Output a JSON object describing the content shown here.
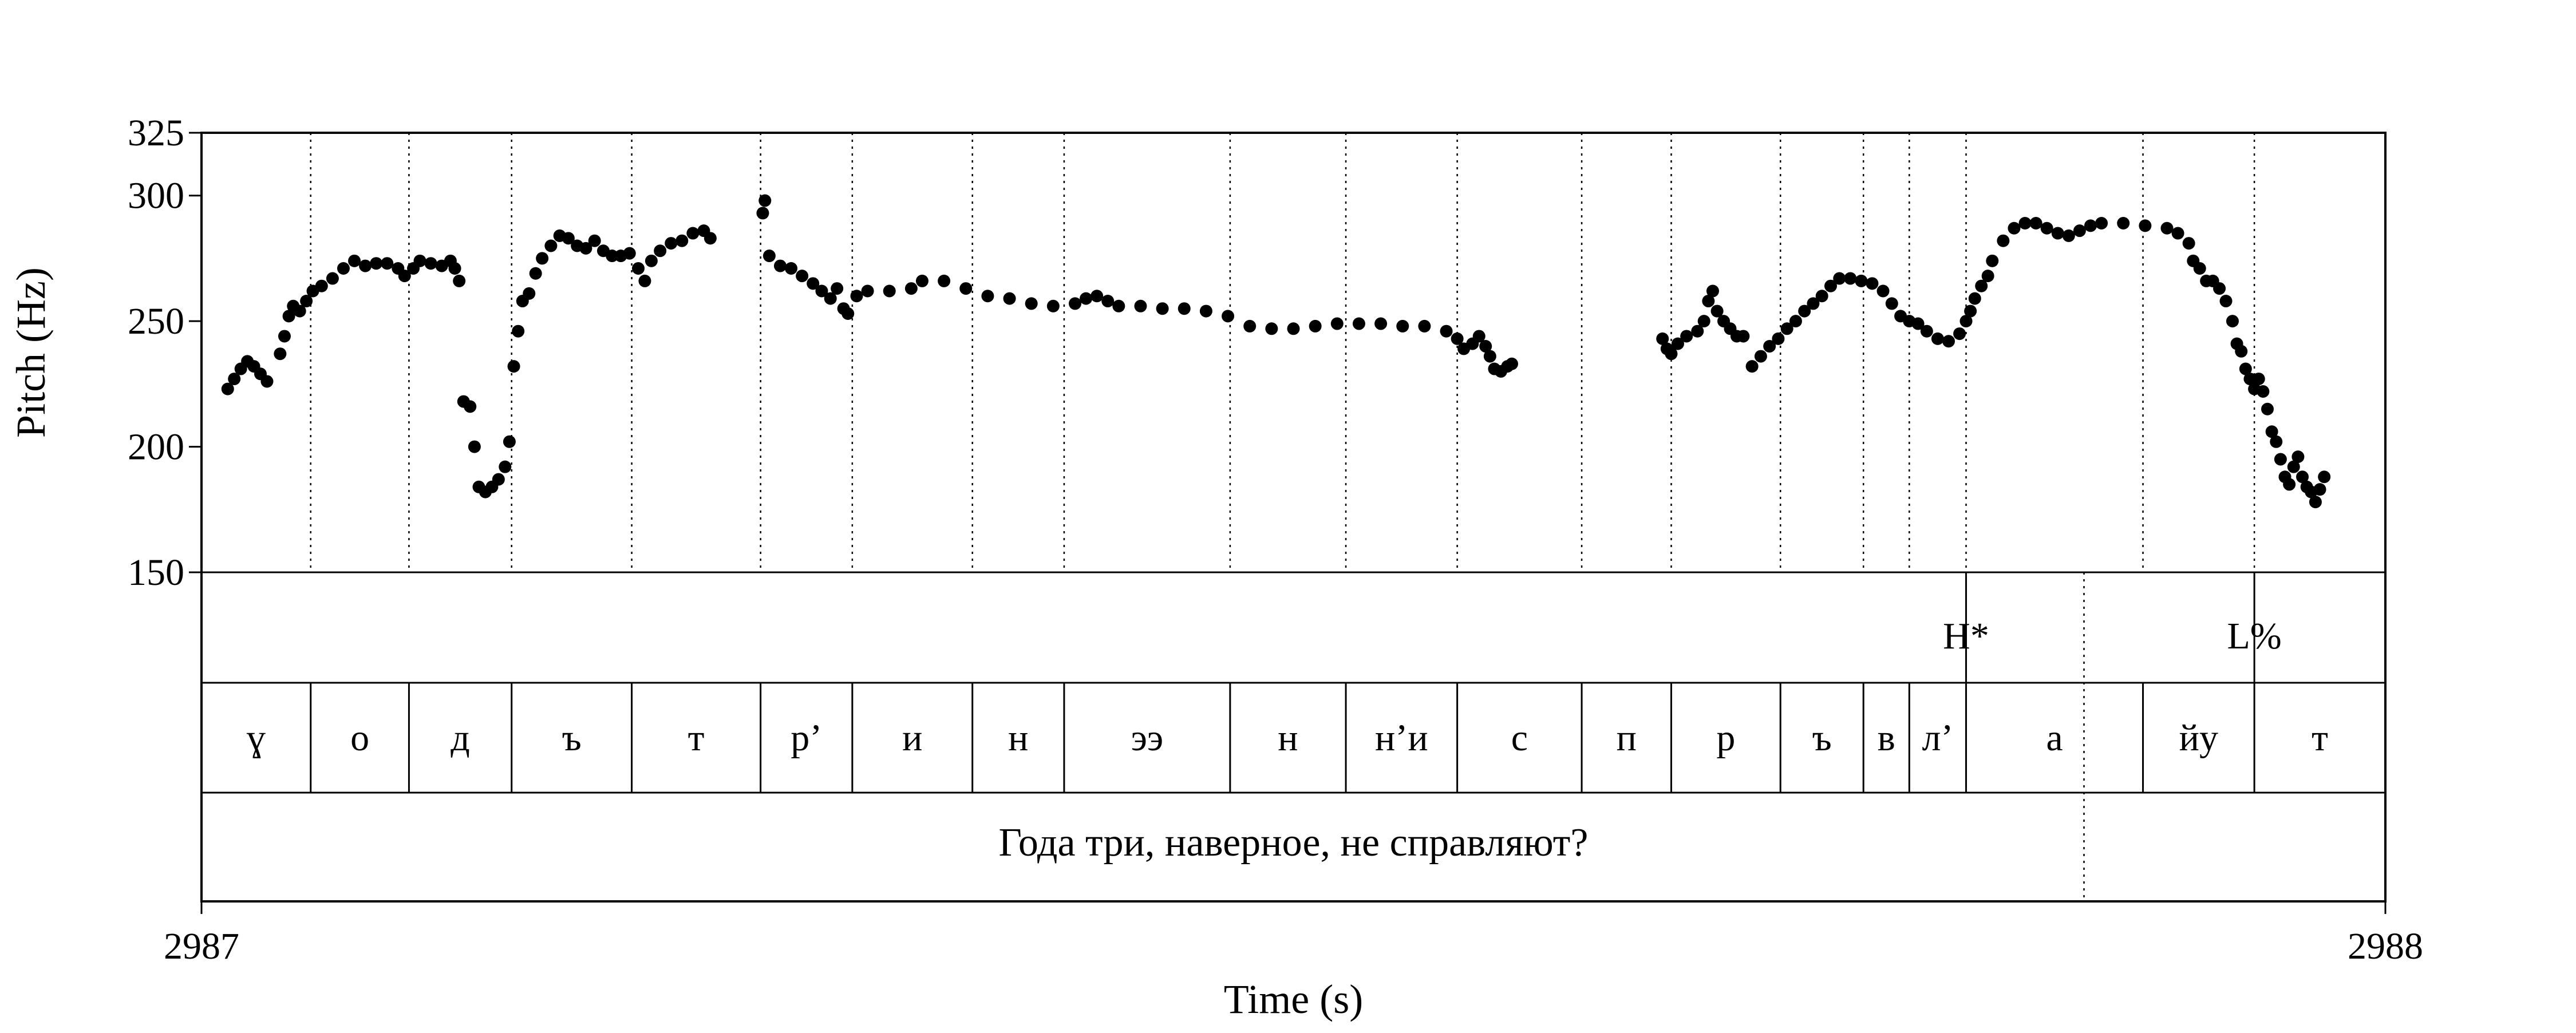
{
  "chart_data": {
    "type": "scatter",
    "xlabel": "Time (s)",
    "ylabel": "Pitch (Hz)",
    "xlim": [
      2987,
      2988
    ],
    "ylim": [
      150,
      325
    ],
    "x_ticks": [
      "2987",
      "2988"
    ],
    "y_ticks": [
      150,
      200,
      250,
      300,
      325
    ],
    "grid": "dotted vertical lines at segment boundaries",
    "series": [
      {
        "marker": "filled circle",
        "color": "#000000",
        "points": [
          [
            0.012,
            223
          ],
          [
            0.015,
            227
          ],
          [
            0.018,
            231
          ],
          [
            0.021,
            234
          ],
          [
            0.024,
            232
          ],
          [
            0.027,
            229
          ],
          [
            0.03,
            226
          ],
          [
            0.036,
            237
          ],
          [
            0.038,
            244
          ],
          [
            0.04,
            252
          ],
          [
            0.042,
            256
          ],
          [
            0.045,
            254
          ],
          [
            0.048,
            258
          ],
          [
            0.051,
            262
          ],
          [
            0.055,
            264
          ],
          [
            0.06,
            267
          ],
          [
            0.065,
            271
          ],
          [
            0.07,
            274
          ],
          [
            0.075,
            272
          ],
          [
            0.08,
            273
          ],
          [
            0.085,
            273
          ],
          [
            0.09,
            271
          ],
          [
            0.093,
            268
          ],
          [
            0.097,
            271
          ],
          [
            0.1,
            274
          ],
          [
            0.105,
            273
          ],
          [
            0.11,
            272
          ],
          [
            0.114,
            274
          ],
          [
            0.116,
            271
          ],
          [
            0.118,
            266
          ],
          [
            0.12,
            218
          ],
          [
            0.123,
            216
          ],
          [
            0.125,
            200
          ],
          [
            0.127,
            184
          ],
          [
            0.13,
            182
          ],
          [
            0.133,
            184
          ],
          [
            0.136,
            187
          ],
          [
            0.139,
            192
          ],
          [
            0.141,
            202
          ],
          [
            0.143,
            232
          ],
          [
            0.145,
            246
          ],
          [
            0.147,
            258
          ],
          [
            0.15,
            261
          ],
          [
            0.153,
            269
          ],
          [
            0.156,
            275
          ],
          [
            0.16,
            280
          ],
          [
            0.164,
            284
          ],
          [
            0.168,
            283
          ],
          [
            0.172,
            280
          ],
          [
            0.176,
            279
          ],
          [
            0.18,
            282
          ],
          [
            0.184,
            278
          ],
          [
            0.188,
            276
          ],
          [
            0.192,
            276
          ],
          [
            0.196,
            277
          ],
          [
            0.2,
            271
          ],
          [
            0.203,
            266
          ],
          [
            0.206,
            274
          ],
          [
            0.21,
            278
          ],
          [
            0.215,
            281
          ],
          [
            0.22,
            282
          ],
          [
            0.225,
            285
          ],
          [
            0.23,
            286
          ],
          [
            0.233,
            283
          ],
          [
            0.257,
            293
          ],
          [
            0.258,
            298
          ],
          [
            0.26,
            276
          ],
          [
            0.265,
            272
          ],
          [
            0.27,
            271
          ],
          [
            0.275,
            268
          ],
          [
            0.28,
            265
          ],
          [
            0.284,
            262
          ],
          [
            0.288,
            259
          ],
          [
            0.291,
            263
          ],
          [
            0.294,
            255
          ],
          [
            0.296,
            253
          ],
          [
            0.3,
            260
          ],
          [
            0.305,
            262
          ],
          [
            0.315,
            262
          ],
          [
            0.325,
            263
          ],
          [
            0.33,
            266
          ],
          [
            0.34,
            266
          ],
          [
            0.35,
            263
          ],
          [
            0.36,
            260
          ],
          [
            0.37,
            259
          ],
          [
            0.38,
            257
          ],
          [
            0.39,
            256
          ],
          [
            0.4,
            257
          ],
          [
            0.405,
            259
          ],
          [
            0.41,
            260
          ],
          [
            0.415,
            258
          ],
          [
            0.42,
            256
          ],
          [
            0.43,
            256
          ],
          [
            0.44,
            255
          ],
          [
            0.45,
            255
          ],
          [
            0.46,
            254
          ],
          [
            0.47,
            252
          ],
          [
            0.48,
            248
          ],
          [
            0.49,
            247
          ],
          [
            0.5,
            247
          ],
          [
            0.51,
            248
          ],
          [
            0.52,
            249
          ],
          [
            0.53,
            249
          ],
          [
            0.54,
            249
          ],
          [
            0.55,
            248
          ],
          [
            0.56,
            248
          ],
          [
            0.57,
            246
          ],
          [
            0.575,
            243
          ],
          [
            0.578,
            239
          ],
          [
            0.582,
            241
          ],
          [
            0.585,
            244
          ],
          [
            0.588,
            240
          ],
          [
            0.59,
            236
          ],
          [
            0.592,
            231
          ],
          [
            0.595,
            230
          ],
          [
            0.598,
            232
          ],
          [
            0.6,
            233
          ],
          [
            0.669,
            243
          ],
          [
            0.671,
            239
          ],
          [
            0.673,
            237
          ],
          [
            0.676,
            241
          ],
          [
            0.68,
            244
          ],
          [
            0.685,
            246
          ],
          [
            0.688,
            250
          ],
          [
            0.69,
            258
          ],
          [
            0.692,
            262
          ],
          [
            0.694,
            254
          ],
          [
            0.697,
            250
          ],
          [
            0.7,
            247
          ],
          [
            0.703,
            244
          ],
          [
            0.706,
            244
          ],
          [
            0.71,
            232
          ],
          [
            0.714,
            236
          ],
          [
            0.718,
            240
          ],
          [
            0.722,
            243
          ],
          [
            0.726,
            247
          ],
          [
            0.73,
            250
          ],
          [
            0.734,
            254
          ],
          [
            0.738,
            257
          ],
          [
            0.742,
            260
          ],
          [
            0.746,
            264
          ],
          [
            0.75,
            267
          ],
          [
            0.755,
            267
          ],
          [
            0.76,
            266
          ],
          [
            0.765,
            265
          ],
          [
            0.77,
            262
          ],
          [
            0.774,
            257
          ],
          [
            0.778,
            252
          ],
          [
            0.782,
            250
          ],
          [
            0.786,
            249
          ],
          [
            0.79,
            246
          ],
          [
            0.795,
            243
          ],
          [
            0.8,
            242
          ],
          [
            0.805,
            245
          ],
          [
            0.808,
            250
          ],
          [
            0.81,
            254
          ],
          [
            0.812,
            259
          ],
          [
            0.815,
            264
          ],
          [
            0.818,
            268
          ],
          [
            0.82,
            274
          ],
          [
            0.825,
            282
          ],
          [
            0.83,
            287
          ],
          [
            0.835,
            289
          ],
          [
            0.84,
            289
          ],
          [
            0.845,
            287
          ],
          [
            0.85,
            285
          ],
          [
            0.855,
            284
          ],
          [
            0.86,
            286
          ],
          [
            0.865,
            288
          ],
          [
            0.87,
            289
          ],
          [
            0.88,
            289
          ],
          [
            0.89,
            288
          ],
          [
            0.9,
            287
          ],
          [
            0.905,
            285
          ],
          [
            0.91,
            281
          ],
          [
            0.912,
            274
          ],
          [
            0.915,
            271
          ],
          [
            0.918,
            266
          ],
          [
            0.921,
            266
          ],
          [
            0.924,
            263
          ],
          [
            0.927,
            258
          ],
          [
            0.93,
            250
          ],
          [
            0.932,
            241
          ],
          [
            0.934,
            238
          ],
          [
            0.936,
            231
          ],
          [
            0.938,
            227
          ],
          [
            0.94,
            223
          ],
          [
            0.942,
            227
          ],
          [
            0.944,
            222
          ],
          [
            0.946,
            215
          ],
          [
            0.948,
            206
          ],
          [
            0.95,
            202
          ],
          [
            0.952,
            195
          ],
          [
            0.954,
            188
          ],
          [
            0.956,
            185
          ],
          [
            0.958,
            192
          ],
          [
            0.96,
            196
          ],
          [
            0.962,
            188
          ],
          [
            0.964,
            184
          ],
          [
            0.966,
            182
          ],
          [
            0.968,
            178
          ],
          [
            0.97,
            183
          ],
          [
            0.972,
            188
          ]
        ]
      }
    ],
    "tiers": {
      "tone": {
        "labels": [
          {
            "text": "H*",
            "t": 0.808
          },
          {
            "text": "L%",
            "t": 0.94
          }
        ]
      },
      "segments": [
        {
          "text": "ɣ",
          "start": 0.0,
          "end": 0.05
        },
        {
          "text": "о",
          "start": 0.05,
          "end": 0.095
        },
        {
          "text": "д",
          "start": 0.095,
          "end": 0.142
        },
        {
          "text": "ъ",
          "start": 0.142,
          "end": 0.197
        },
        {
          "text": "т",
          "start": 0.197,
          "end": 0.256
        },
        {
          "text": "р’",
          "start": 0.256,
          "end": 0.298
        },
        {
          "text": "и",
          "start": 0.298,
          "end": 0.353
        },
        {
          "text": "н",
          "start": 0.353,
          "end": 0.395
        },
        {
          "text": "ээ",
          "start": 0.395,
          "end": 0.471
        },
        {
          "text": "н",
          "start": 0.471,
          "end": 0.524
        },
        {
          "text": "н’и",
          "start": 0.524,
          "end": 0.575
        },
        {
          "text": "с",
          "start": 0.575,
          "end": 0.632
        },
        {
          "text": "п",
          "start": 0.632,
          "end": 0.673
        },
        {
          "text": "р",
          "start": 0.673,
          "end": 0.723
        },
        {
          "text": "ъ",
          "start": 0.723,
          "end": 0.761
        },
        {
          "text": "в",
          "start": 0.761,
          "end": 0.782
        },
        {
          "text": "л’",
          "start": 0.782,
          "end": 0.808
        },
        {
          "text": "а",
          "start": 0.808,
          "end": 0.889
        },
        {
          "text": "йу",
          "start": 0.889,
          "end": 0.94
        },
        {
          "text": "т",
          "start": 0.94,
          "end": 1.0
        }
      ],
      "sentence": "Года три, наверное, не справляют?"
    }
  }
}
